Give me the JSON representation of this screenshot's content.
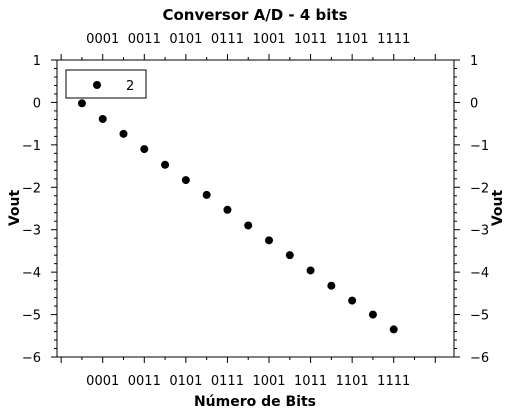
{
  "chart_data": {
    "type": "scatter",
    "title": "Conversor A/D - 4 bits",
    "xlabel": "Número de Bits",
    "ylabel_left": "Vout",
    "ylabel_right": "Vout",
    "x_tick_labels": [
      "0001",
      "0011",
      "0101",
      "0111",
      "1001",
      "1011",
      "1101",
      "1111"
    ],
    "x_tick_label_values": [
      1,
      3,
      5,
      7,
      9,
      11,
      13,
      15
    ],
    "xlim": [
      -1.2,
      17.9
    ],
    "ylim": [
      -6,
      1
    ],
    "y_ticks": [
      1,
      0,
      -1,
      -2,
      -3,
      -4,
      -5,
      -6
    ],
    "y_tick_labels": [
      "1",
      "0",
      "−1",
      "−2",
      "−3",
      "−4",
      "−5",
      "−6"
    ],
    "legend": {
      "position": "top-left",
      "entries": [
        "2"
      ]
    },
    "grid": false,
    "marker_color": "#000000",
    "series": [
      {
        "name": "2",
        "x": [
          0,
          1,
          2,
          3,
          4,
          5,
          6,
          7,
          8,
          9,
          10,
          11,
          12,
          13,
          14,
          15
        ],
        "y": [
          -0.02,
          -0.39,
          -0.74,
          -1.1,
          -1.47,
          -1.83,
          -2.18,
          -2.53,
          -2.9,
          -3.25,
          -3.6,
          -3.96,
          -4.32,
          -4.67,
          -5.0,
          -5.35
        ]
      }
    ]
  }
}
